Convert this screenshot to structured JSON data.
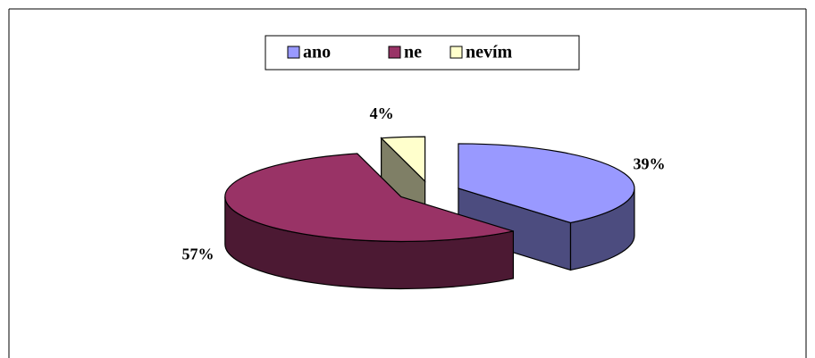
{
  "chart_data": {
    "type": "pie",
    "categories": [
      "ano",
      "ne",
      "nevím"
    ],
    "values": [
      39,
      57,
      4
    ],
    "value_labels": [
      "39%",
      "57%",
      "4%"
    ],
    "colors": [
      "#9999ff",
      "#993366",
      "#ffffcc"
    ],
    "legend": "top"
  }
}
